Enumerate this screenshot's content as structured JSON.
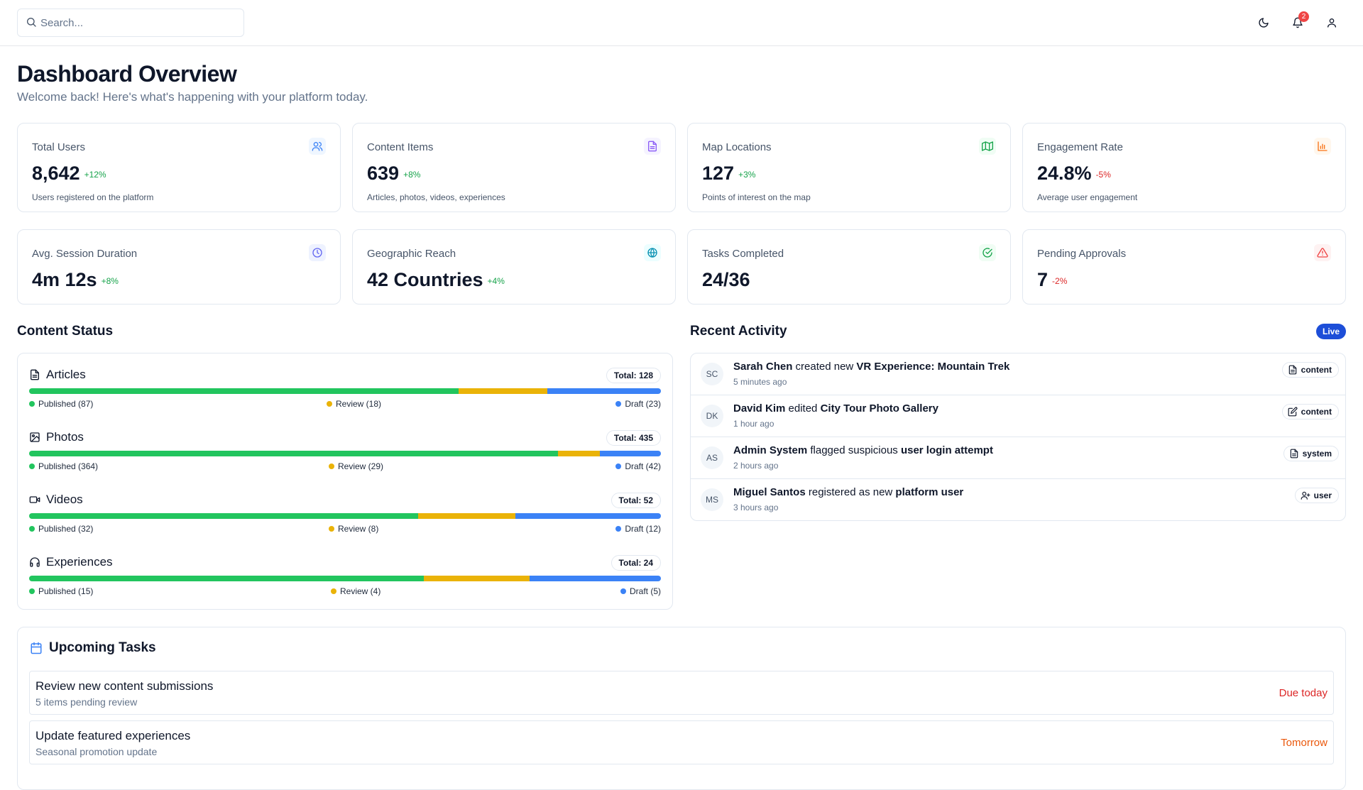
{
  "header": {
    "search_placeholder": "Search...",
    "notification_count": "2",
    "icons": [
      "search-icon",
      "moon-icon",
      "bell-icon",
      "user-icon"
    ]
  },
  "page": {
    "title": "Dashboard Overview",
    "subtitle": "Welcome back! Here's what's happening with your platform today."
  },
  "stats": [
    {
      "label": "Total Users",
      "value": "8,642",
      "change": "+12%",
      "trend": "up",
      "desc": "Users registered on the platform",
      "icon": "users-icon",
      "color": "#3b82f6"
    },
    {
      "label": "Content Items",
      "value": "639",
      "change": "+8%",
      "trend": "up",
      "desc": "Articles, photos, videos, experiences",
      "icon": "file-icon",
      "color": "#8b5cf6"
    },
    {
      "label": "Map Locations",
      "value": "127",
      "change": "+3%",
      "trend": "up",
      "desc": "Points of interest on the map",
      "icon": "map-icon",
      "color": "#16a34a"
    },
    {
      "label": "Engagement Rate",
      "value": "24.8%",
      "change": "-5%",
      "trend": "down",
      "desc": "Average user engagement",
      "icon": "bar-chart-icon",
      "color": "#f97316"
    },
    {
      "label": "Avg. Session Duration",
      "value": "4m 12s",
      "change": "+8%",
      "trend": "up",
      "icon": "clock-icon",
      "color": "#6366f1"
    },
    {
      "label": "Geographic Reach",
      "value": "42 Countries",
      "change": "+4%",
      "trend": "up",
      "icon": "globe-icon",
      "color": "#0891b2"
    },
    {
      "label": "Tasks Completed",
      "value": "24/36",
      "change": "",
      "trend": "up",
      "icon": "check-circle-icon",
      "color": "#16a34a"
    },
    {
      "label": "Pending Approvals",
      "value": "7",
      "change": "-2%",
      "trend": "down",
      "icon": "alert-triangle-icon",
      "color": "#ef4444"
    }
  ],
  "content_status": {
    "title": "Content Status",
    "colors": {
      "published": "#22c55e",
      "review": "#eab308",
      "draft": "#3b82f6"
    },
    "rows": [
      {
        "name": "Articles",
        "icon": "file-text-icon",
        "total_label": "Total: 128",
        "published": 87,
        "review": 18,
        "draft": 23,
        "published_label": "Published (87)",
        "review_label": "Review (18)",
        "draft_label": "Draft (23)"
      },
      {
        "name": "Photos",
        "icon": "image-icon",
        "total_label": "Total: 435",
        "published": 364,
        "review": 29,
        "draft": 42,
        "published_label": "Published (364)",
        "review_label": "Review (29)",
        "draft_label": "Draft (42)"
      },
      {
        "name": "Videos",
        "icon": "video-icon",
        "total_label": "Total: 52",
        "published": 32,
        "review": 8,
        "draft": 12,
        "published_label": "Published (32)",
        "review_label": "Review (8)",
        "draft_label": "Draft (12)"
      },
      {
        "name": "Experiences",
        "icon": "headset-icon",
        "total_label": "Total: 24",
        "published": 15,
        "review": 4,
        "draft": 5,
        "published_label": "Published (15)",
        "review_label": "Review (4)",
        "draft_label": "Draft (5)"
      }
    ]
  },
  "recent_activity": {
    "title": "Recent Activity",
    "live_label": "Live",
    "items": [
      {
        "initials": "SC",
        "user": "Sarah Chen",
        "action": " created new ",
        "target": "VR Experience: Mountain Trek",
        "time": "5 minutes ago",
        "tag": "content",
        "tag_icon": "file-text-icon"
      },
      {
        "initials": "DK",
        "user": "David Kim",
        "action": " edited ",
        "target": "City Tour Photo Gallery",
        "time": "1 hour ago",
        "tag": "content",
        "tag_icon": "edit-icon"
      },
      {
        "initials": "AS",
        "user": "Admin System",
        "action": " flagged suspicious ",
        "target": "user login attempt",
        "time": "2 hours ago",
        "tag": "system",
        "tag_icon": "file-text-icon"
      },
      {
        "initials": "MS",
        "user": "Miguel Santos",
        "action": " registered as new ",
        "target": "platform user",
        "time": "3 hours ago",
        "tag": "user",
        "tag_icon": "user-plus-icon"
      }
    ]
  },
  "upcoming_tasks": {
    "title": "Upcoming Tasks",
    "items": [
      {
        "title": "Review new content submissions",
        "sub": "5 items pending review",
        "due": "Due today",
        "due_color": "#dc2626"
      },
      {
        "title": "Update featured experiences",
        "sub": "Seasonal promotion update",
        "due": "Tomorrow",
        "due_color": "#ea580c"
      }
    ]
  }
}
